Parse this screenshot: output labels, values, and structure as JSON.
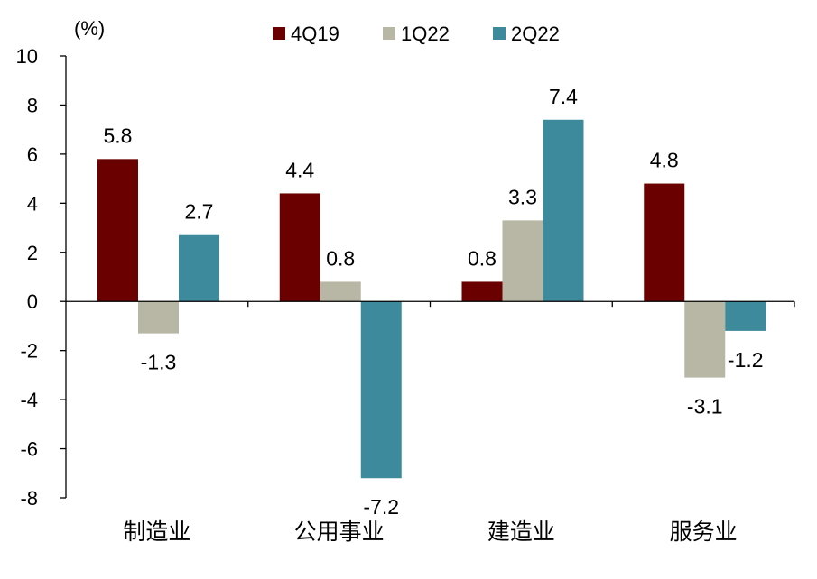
{
  "chart_data": {
    "type": "bar",
    "unit_label": "(%)",
    "categories": [
      "制造业",
      "公用事业",
      "建造业",
      "服务业"
    ],
    "series": [
      {
        "name": "4Q19",
        "color": "#6b0000",
        "values": [
          5.8,
          4.4,
          0.8,
          4.8
        ]
      },
      {
        "name": "1Q22",
        "color": "#b8b7a5",
        "values": [
          -1.3,
          0.8,
          3.3,
          -3.1
        ]
      },
      {
        "name": "2Q22",
        "color": "#3c8a9b",
        "values": [
          2.7,
          -7.2,
          7.4,
          -1.2
        ]
      }
    ],
    "data_labels": [
      [
        "5.8",
        "-1.3",
        "2.7"
      ],
      [
        "4.4",
        "0.8",
        "-7.2"
      ],
      [
        "0.8",
        "3.3",
        "7.4"
      ],
      [
        "4.8",
        "-3.1",
        "-1.2"
      ]
    ],
    "ylim": [
      -8,
      10
    ],
    "yticks": [
      -8,
      -6,
      -4,
      -2,
      0,
      2,
      4,
      6,
      8,
      10
    ],
    "legend_position": "top"
  }
}
